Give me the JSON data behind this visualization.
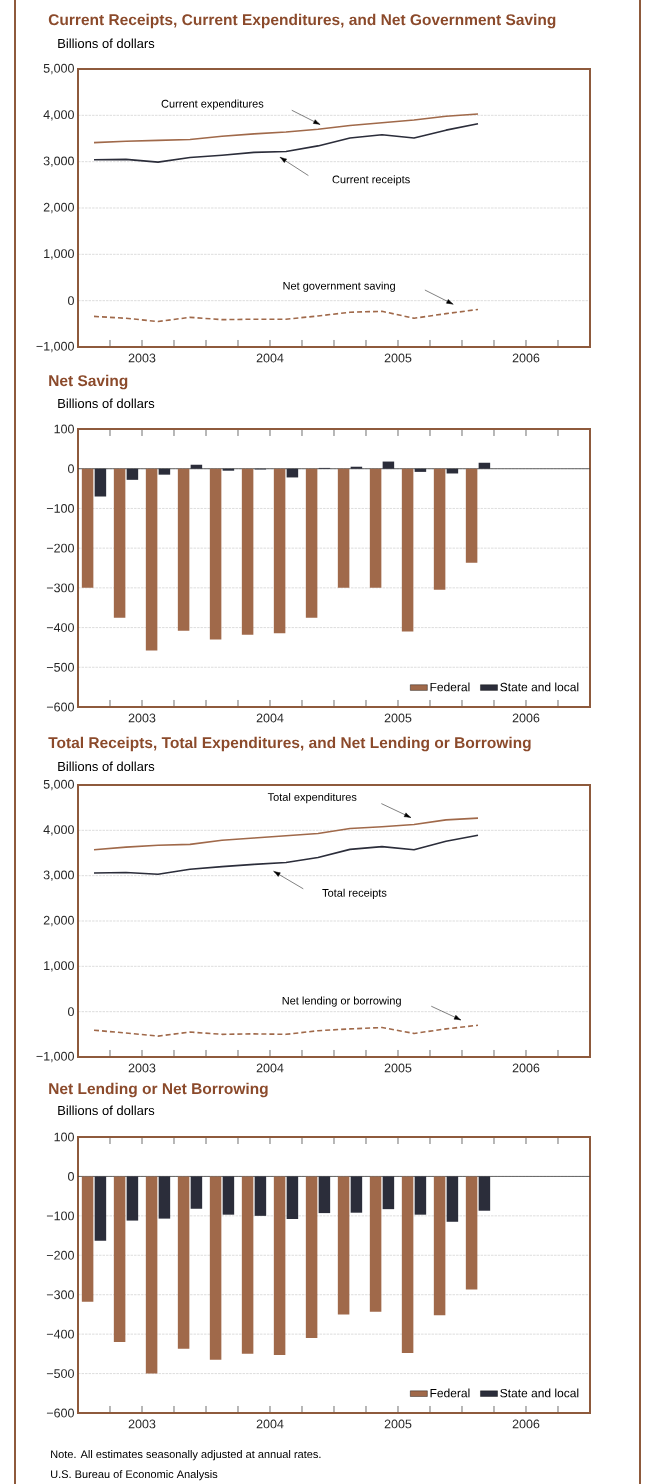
{
  "chart_data": [
    {
      "type": "line",
      "title": "Current Receipts, Current Expenditures, and Net Government Saving",
      "subtitle": "Billions of dollars",
      "x": [
        2003.125,
        2003.375,
        2003.625,
        2003.875,
        2004.125,
        2004.375,
        2004.625,
        2004.875,
        2005.125,
        2005.375,
        2005.625,
        2005.875,
        2006.125
      ],
      "xlim": [
        2003,
        2007
      ],
      "xticks": [
        {
          "value": 2003.25,
          "label": null
        },
        {
          "value": 2003.5,
          "label": "2003"
        },
        {
          "value": 2003.75,
          "label": null
        },
        {
          "value": 2004,
          "label": null
        },
        {
          "value": 2004.25,
          "label": null
        },
        {
          "value": 2004.5,
          "label": "2004"
        },
        {
          "value": 2004.75,
          "label": null
        },
        {
          "value": 2005,
          "label": null
        },
        {
          "value": 2005.25,
          "label": null
        },
        {
          "value": 2005.5,
          "label": "2005"
        },
        {
          "value": 2005.75,
          "label": null
        },
        {
          "value": 2006,
          "label": null
        },
        {
          "value": 2006.25,
          "label": null
        },
        {
          "value": 2006.5,
          "label": "2006"
        },
        {
          "value": 2006.75,
          "label": null
        }
      ],
      "ylim": [
        -1000,
        5000
      ],
      "yticks": [
        {
          "value": -1000,
          "label": "−1,000"
        },
        0,
        {
          "value": 1000,
          "label": "1,000"
        },
        {
          "value": 2000,
          "label": "2,000"
        },
        {
          "value": 3000,
          "label": "3,000"
        },
        {
          "value": 4000,
          "label": "4,000"
        },
        {
          "value": 5000,
          "label": "5,000"
        }
      ],
      "grid": "y",
      "series": [
        {
          "name": "Current expenditures",
          "color": "#a0694a",
          "line_style": "solid",
          "values": [
            3410,
            3440,
            3460,
            3480,
            3550,
            3600,
            3640,
            3700,
            3780,
            3840,
            3900,
            3980,
            4030
          ]
        },
        {
          "name": "Current receipts",
          "color": "#2b2d3a",
          "line_style": "solid",
          "values": [
            3040,
            3050,
            2990,
            3090,
            3140,
            3200,
            3220,
            3340,
            3510,
            3580,
            3510,
            3680,
            3820
          ]
        },
        {
          "name": "Net government saving",
          "color": "#a0694a",
          "line_style": "dashed",
          "values": [
            -340,
            -380,
            -450,
            -360,
            -410,
            -400,
            -400,
            -330,
            -250,
            -230,
            -380,
            -280,
            -190
          ]
        }
      ]
    },
    {
      "type": "bar",
      "title": "Net Saving",
      "subtitle": "Billions of dollars",
      "x": [
        2003.125,
        2003.375,
        2003.625,
        2003.875,
        2004.125,
        2004.375,
        2004.625,
        2004.875,
        2005.125,
        2005.375,
        2005.625,
        2005.875,
        2006.125
      ],
      "xlim": [
        2003,
        2007
      ],
      "xticks": [
        {
          "value": 2003.25,
          "label": null
        },
        {
          "value": 2003.5,
          "label": "2003"
        },
        {
          "value": 2003.75,
          "label": null
        },
        {
          "value": 2004,
          "label": null
        },
        {
          "value": 2004.25,
          "label": null
        },
        {
          "value": 2004.5,
          "label": "2004"
        },
        {
          "value": 2004.75,
          "label": null
        },
        {
          "value": 2005,
          "label": null
        },
        {
          "value": 2005.25,
          "label": null
        },
        {
          "value": 2005.5,
          "label": "2005"
        },
        {
          "value": 2005.75,
          "label": null
        },
        {
          "value": 2006,
          "label": null
        },
        {
          "value": 2006.25,
          "label": null
        },
        {
          "value": 2006.5,
          "label": "2006"
        },
        {
          "value": 2006.75,
          "label": null
        }
      ],
      "ylim": [
        -600,
        100
      ],
      "yticks": [
        {
          "value": -600,
          "label": "−600"
        },
        {
          "value": -500,
          "label": "−500"
        },
        {
          "value": -400,
          "label": "−400"
        },
        {
          "value": -300,
          "label": "−300"
        },
        {
          "value": -200,
          "label": "−200"
        },
        {
          "value": -100,
          "label": "−100"
        },
        0,
        100
      ],
      "grid": "y",
      "legend": "bottom right",
      "series": [
        {
          "name": "Federal",
          "color": "#a0694a",
          "values": [
            -300,
            -375,
            -458,
            -408,
            -430,
            -418,
            -414,
            -375,
            -300,
            -300,
            -410,
            -305,
            -237
          ]
        },
        {
          "name": "State and local",
          "color": "#2b2d3a",
          "values": [
            -70,
            -28,
            -15,
            10,
            -5,
            -2,
            -22,
            2,
            5,
            18,
            -8,
            -12,
            15
          ]
        }
      ]
    },
    {
      "type": "line",
      "title": "Total Receipts, Total Expenditures, and Net Lending or Borrowing",
      "subtitle": "Billions of dollars",
      "x": [
        2003.125,
        2003.375,
        2003.625,
        2003.875,
        2004.125,
        2004.375,
        2004.625,
        2004.875,
        2005.125,
        2005.375,
        2005.625,
        2005.875,
        2006.125
      ],
      "xlim": [
        2003,
        2007
      ],
      "xticks": [
        {
          "value": 2003.25,
          "label": null
        },
        {
          "value": 2003.5,
          "label": "2003"
        },
        {
          "value": 2003.75,
          "label": null
        },
        {
          "value": 2004,
          "label": null
        },
        {
          "value": 2004.25,
          "label": null
        },
        {
          "value": 2004.5,
          "label": "2004"
        },
        {
          "value": 2004.75,
          "label": null
        },
        {
          "value": 2005,
          "label": null
        },
        {
          "value": 2005.25,
          "label": null
        },
        {
          "value": 2005.5,
          "label": "2005"
        },
        {
          "value": 2005.75,
          "label": null
        },
        {
          "value": 2006,
          "label": null
        },
        {
          "value": 2006.25,
          "label": null
        },
        {
          "value": 2006.5,
          "label": "2006"
        },
        {
          "value": 2006.75,
          "label": null
        }
      ],
      "ylim": [
        -1000,
        5000
      ],
      "yticks": [
        {
          "value": -1000,
          "label": "−1,000"
        },
        0,
        {
          "value": 1000,
          "label": "1,000"
        },
        {
          "value": 2000,
          "label": "2,000"
        },
        {
          "value": 3000,
          "label": "3,000"
        },
        {
          "value": 4000,
          "label": "4,000"
        },
        {
          "value": 5000,
          "label": "5,000"
        }
      ],
      "grid": "y",
      "series": [
        {
          "name": "Total expenditures",
          "color": "#a0694a",
          "line_style": "solid",
          "values": [
            3570,
            3630,
            3670,
            3690,
            3780,
            3830,
            3880,
            3930,
            4040,
            4080,
            4130,
            4230,
            4270
          ]
        },
        {
          "name": "Total receipts",
          "color": "#2b2d3a",
          "line_style": "solid",
          "values": [
            3060,
            3070,
            3030,
            3140,
            3200,
            3250,
            3290,
            3400,
            3580,
            3640,
            3570,
            3760,
            3890
          ]
        },
        {
          "name": "Net lending or borrowing",
          "color": "#a0694a",
          "line_style": "dashed",
          "values": [
            -410,
            -470,
            -540,
            -450,
            -500,
            -490,
            -500,
            -420,
            -380,
            -350,
            -480,
            -380,
            -300
          ]
        }
      ]
    },
    {
      "type": "bar",
      "title": "Net Lending or Net Borrowing",
      "subtitle": "Billions of dollars",
      "x": [
        2003.125,
        2003.375,
        2003.625,
        2003.875,
        2004.125,
        2004.375,
        2004.625,
        2004.875,
        2005.125,
        2005.375,
        2005.625,
        2005.875,
        2006.125
      ],
      "xlim": [
        2003,
        2007
      ],
      "xticks": [
        {
          "value": 2003.25,
          "label": null
        },
        {
          "value": 2003.5,
          "label": "2003"
        },
        {
          "value": 2003.75,
          "label": null
        },
        {
          "value": 2004,
          "label": null
        },
        {
          "value": 2004.25,
          "label": null
        },
        {
          "value": 2004.5,
          "label": "2004"
        },
        {
          "value": 2004.75,
          "label": null
        },
        {
          "value": 2005,
          "label": null
        },
        {
          "value": 2005.25,
          "label": null
        },
        {
          "value": 2005.5,
          "label": "2005"
        },
        {
          "value": 2005.75,
          "label": null
        },
        {
          "value": 2006,
          "label": null
        },
        {
          "value": 2006.25,
          "label": null
        },
        {
          "value": 2006.5,
          "label": "2006"
        },
        {
          "value": 2006.75,
          "label": null
        }
      ],
      "ylim": [
        -600,
        100
      ],
      "yticks": [
        {
          "value": -600,
          "label": "−600"
        },
        {
          "value": -500,
          "label": "−500"
        },
        {
          "value": -400,
          "label": "−400"
        },
        {
          "value": -300,
          "label": "−300"
        },
        {
          "value": -200,
          "label": "−200"
        },
        {
          "value": -100,
          "label": "−100"
        },
        0,
        100
      ],
      "grid": "y",
      "legend": "bottom right",
      "series": [
        {
          "name": "Federal",
          "color": "#a0694a",
          "values": [
            -318,
            -420,
            -500,
            -437,
            -465,
            -450,
            -453,
            -410,
            -350,
            -343,
            -448,
            -352,
            -287
          ]
        },
        {
          "name": "State and local",
          "color": "#2b2d3a",
          "values": [
            -163,
            -112,
            -107,
            -82,
            -97,
            -100,
            -108,
            -93,
            -92,
            -83,
            -97,
            -115,
            -87
          ]
        }
      ],
      "annotations": [
        "Note. All estimates seasonally adjusted at annual rates.",
        "U.S. Bureau of Economic Analysis"
      ]
    }
  ]
}
